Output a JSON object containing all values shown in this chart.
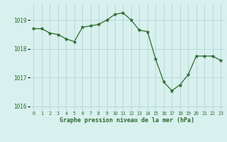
{
  "x": [
    0,
    1,
    2,
    3,
    4,
    5,
    6,
    7,
    8,
    9,
    10,
    11,
    12,
    13,
    14,
    15,
    16,
    17,
    18,
    19,
    20,
    21,
    22,
    23
  ],
  "y": [
    1018.7,
    1018.7,
    1018.55,
    1018.5,
    1018.35,
    1018.25,
    1018.75,
    1018.8,
    1018.85,
    1019.0,
    1019.2,
    1019.25,
    1019.0,
    1018.65,
    1018.6,
    1017.65,
    1016.85,
    1016.55,
    1016.75,
    1017.1,
    1017.75,
    1017.75,
    1017.75,
    1017.6
  ],
  "line_color": "#2d6a2d",
  "marker": "*",
  "marker_size": 3.5,
  "bg_color": "#d8f0ee",
  "grid_color": "#b0d8d4",
  "xlabel": "Graphe pression niveau de la mer (hPa)",
  "xlabel_color": "#2d6a2d",
  "tick_label_color": "#2d6a2d",
  "ylim": [
    1015.85,
    1019.55
  ],
  "yticks": [
    1016,
    1017,
    1018,
    1019
  ],
  "xlim": [
    -0.5,
    23.5
  ],
  "xticks": [
    0,
    1,
    2,
    3,
    4,
    5,
    6,
    7,
    8,
    9,
    10,
    11,
    12,
    13,
    14,
    15,
    16,
    17,
    18,
    19,
    20,
    21,
    22,
    23
  ]
}
